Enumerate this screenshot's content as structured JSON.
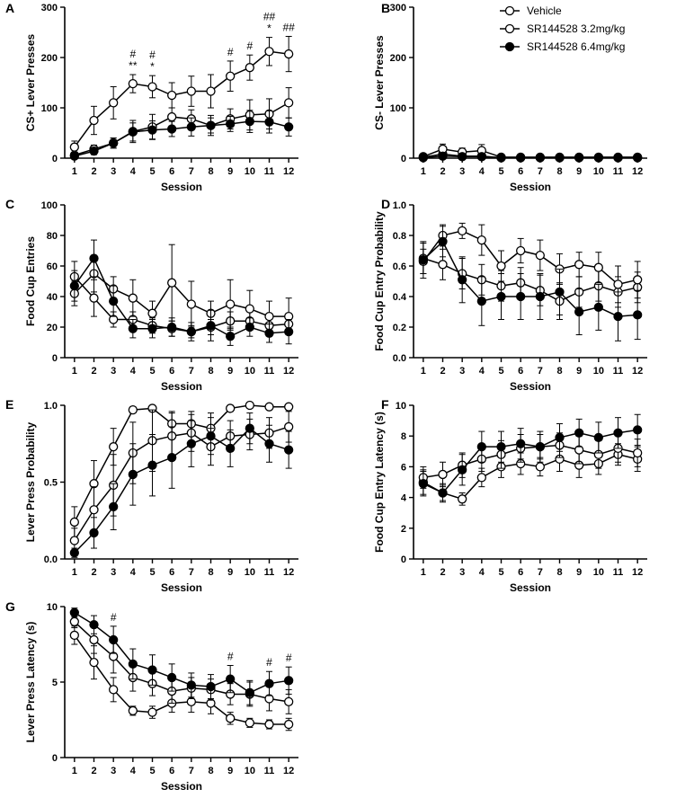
{
  "figure": {
    "legend": [
      {
        "name": "Vehicle",
        "fill": "#ffffff"
      },
      {
        "name": "SR144528 3.2mg/kg",
        "fill": "#ffffff"
      },
      {
        "name": "SR144528 6.4mg/kg",
        "fill": "#000000"
      }
    ]
  },
  "chart_data": [
    {
      "id": "A",
      "label": "A",
      "type": "line",
      "title": "",
      "xlabel": "Session",
      "ylabel": "CS+  Lever Presses",
      "x": [
        1,
        2,
        3,
        4,
        5,
        6,
        7,
        8,
        9,
        10,
        11,
        12
      ],
      "ylim": [
        0,
        300
      ],
      "yticks": [
        0,
        100,
        200,
        300
      ],
      "series": [
        {
          "name": "Vehicle",
          "values": [
            22,
            75,
            110,
            148,
            142,
            125,
            133,
            133,
            163,
            180,
            212,
            207
          ],
          "errors": [
            12,
            28,
            32,
            18,
            22,
            25,
            30,
            33,
            30,
            25,
            28,
            35
          ]
        },
        {
          "name": "SR144528 3.2mg/kg",
          "values": [
            6,
            18,
            30,
            53,
            62,
            82,
            78,
            65,
            78,
            86,
            88,
            110
          ],
          "errors": [
            4,
            8,
            10,
            22,
            25,
            18,
            18,
            20,
            20,
            30,
            30,
            30
          ]
        },
        {
          "name": "SR144528 6.4mg/kg",
          "values": [
            4,
            14,
            30,
            52,
            56,
            58,
            62,
            65,
            68,
            73,
            72,
            62
          ],
          "errors": [
            3,
            7,
            10,
            18,
            18,
            15,
            18,
            15,
            15,
            22,
            22,
            18
          ]
        }
      ],
      "annotations": [
        {
          "x": 4,
          "lines": [
            "#",
            "**"
          ]
        },
        {
          "x": 5,
          "lines": [
            "#",
            "*"
          ]
        },
        {
          "x": 9,
          "lines": [
            "#"
          ]
        },
        {
          "x": 10,
          "lines": [
            "#"
          ]
        },
        {
          "x": 11,
          "lines": [
            "##",
            "*"
          ]
        },
        {
          "x": 12,
          "lines": [
            "##"
          ]
        }
      ]
    },
    {
      "id": "B",
      "label": "B",
      "type": "line",
      "title": "",
      "xlabel": "Session",
      "ylabel": "CS-  Lever Presses",
      "x": [
        1,
        2,
        3,
        4,
        5,
        6,
        7,
        8,
        9,
        10,
        11,
        12
      ],
      "ylim": [
        0,
        300
      ],
      "yticks": [
        0,
        100,
        200,
        300
      ],
      "series": [
        {
          "name": "Vehicle",
          "values": [
            2,
            8,
            4,
            4,
            1,
            1,
            1,
            1,
            1,
            1,
            1,
            1
          ],
          "errors": [
            2,
            5,
            4,
            4,
            1,
            1,
            1,
            1,
            1,
            1,
            1,
            1
          ]
        },
        {
          "name": "SR144528 3.2mg/kg",
          "values": [
            3,
            18,
            12,
            15,
            2,
            2,
            2,
            2,
            2,
            2,
            2,
            2
          ],
          "errors": [
            2,
            10,
            8,
            12,
            2,
            1,
            1,
            1,
            1,
            1,
            1,
            1
          ]
        },
        {
          "name": "SR144528 6.4mg/kg",
          "values": [
            1,
            4,
            3,
            3,
            1,
            1,
            1,
            1,
            1,
            1,
            1,
            1
          ],
          "errors": [
            1,
            3,
            2,
            2,
            1,
            1,
            1,
            1,
            1,
            1,
            1,
            1
          ]
        }
      ],
      "annotations": []
    },
    {
      "id": "C",
      "label": "C",
      "type": "line",
      "title": "",
      "xlabel": "Session",
      "ylabel": "Food Cup Entries",
      "x": [
        1,
        2,
        3,
        4,
        5,
        6,
        7,
        8,
        9,
        10,
        11,
        12
      ],
      "ylim": [
        0,
        100
      ],
      "yticks": [
        0,
        20,
        40,
        60,
        80,
        100
      ],
      "series": [
        {
          "name": "Vehicle",
          "values": [
            53,
            39,
            25,
            25,
            21,
            19,
            17,
            20,
            24,
            24,
            21,
            22
          ],
          "errors": [
            10,
            12,
            5,
            5,
            5,
            5,
            4,
            5,
            6,
            6,
            5,
            6
          ]
        },
        {
          "name": "SR144528 3.2mg/kg",
          "values": [
            42,
            55,
            45,
            39,
            29,
            49,
            35,
            29,
            35,
            32,
            27,
            27
          ],
          "errors": [
            8,
            12,
            8,
            12,
            8,
            25,
            15,
            8,
            16,
            12,
            10,
            12
          ]
        },
        {
          "name": "SR144528 6.4mg/kg",
          "values": [
            47,
            65,
            37,
            19,
            19,
            20,
            17,
            21,
            14,
            20,
            16,
            17
          ],
          "errors": [
            10,
            12,
            10,
            6,
            6,
            6,
            6,
            10,
            6,
            6,
            6,
            8
          ]
        }
      ],
      "annotations": []
    },
    {
      "id": "D",
      "label": "D",
      "type": "line",
      "title": "",
      "xlabel": "Session",
      "ylabel": "Food Cup Entry Probability",
      "x": [
        1,
        2,
        3,
        4,
        5,
        6,
        7,
        8,
        9,
        10,
        11,
        12
      ],
      "ylim": [
        0,
        1.0
      ],
      "yticks": [
        0.0,
        0.2,
        0.4,
        0.6,
        0.8,
        1.0
      ],
      "series": [
        {
          "name": "Vehicle",
          "values": [
            0.65,
            0.61,
            0.55,
            0.51,
            0.47,
            0.49,
            0.44,
            0.37,
            0.43,
            0.47,
            0.43,
            0.46
          ],
          "errors": [
            0.1,
            0.1,
            0.1,
            0.1,
            0.1,
            0.1,
            0.1,
            0.12,
            0.1,
            0.1,
            0.1,
            0.1
          ]
        },
        {
          "name": "SR144528 3.2mg/kg",
          "values": [
            0.63,
            0.8,
            0.83,
            0.77,
            0.6,
            0.7,
            0.67,
            0.58,
            0.61,
            0.59,
            0.48,
            0.51
          ],
          "errors": [
            0.08,
            0.07,
            0.05,
            0.1,
            0.1,
            0.08,
            0.1,
            0.1,
            0.08,
            0.1,
            0.12,
            0.12
          ]
        },
        {
          "name": "SR144528 6.4mg/kg",
          "values": [
            0.64,
            0.76,
            0.51,
            0.37,
            0.4,
            0.4,
            0.4,
            0.43,
            0.3,
            0.33,
            0.27,
            0.28
          ],
          "errors": [
            0.12,
            0.1,
            0.15,
            0.16,
            0.15,
            0.15,
            0.15,
            0.15,
            0.15,
            0.15,
            0.16,
            0.16
          ]
        }
      ],
      "annotations": []
    },
    {
      "id": "E",
      "label": "E",
      "type": "line",
      "title": "",
      "xlabel": "Session",
      "ylabel": "Lever Press Probability",
      "x": [
        1,
        2,
        3,
        4,
        5,
        6,
        7,
        8,
        9,
        10,
        11,
        12
      ],
      "ylim": [
        0,
        1.0
      ],
      "yticks": [
        0.0,
        0.5,
        1.0
      ],
      "series": [
        {
          "name": "Vehicle",
          "values": [
            0.24,
            0.49,
            0.73,
            0.97,
            0.98,
            0.88,
            0.88,
            0.85,
            0.98,
            1.0,
            0.99,
            0.99
          ],
          "errors": [
            0.1,
            0.15,
            0.12,
            0.02,
            0.02,
            0.08,
            0.08,
            0.1,
            0.02,
            0.0,
            0.01,
            0.01
          ]
        },
        {
          "name": "SR144528 3.2mg/kg",
          "values": [
            0.12,
            0.32,
            0.48,
            0.69,
            0.77,
            0.8,
            0.82,
            0.73,
            0.8,
            0.81,
            0.82,
            0.86
          ],
          "errors": [
            0.08,
            0.15,
            0.2,
            0.2,
            0.2,
            0.15,
            0.12,
            0.12,
            0.1,
            0.1,
            0.1,
            0.1
          ]
        },
        {
          "name": "SR144528 6.4mg/kg",
          "values": [
            0.04,
            0.17,
            0.34,
            0.55,
            0.61,
            0.66,
            0.75,
            0.8,
            0.72,
            0.85,
            0.75,
            0.71
          ],
          "errors": [
            0.03,
            0.1,
            0.15,
            0.2,
            0.2,
            0.2,
            0.15,
            0.12,
            0.12,
            0.1,
            0.12,
            0.12
          ]
        }
      ],
      "annotations": []
    },
    {
      "id": "F",
      "label": "F",
      "type": "line",
      "title": "",
      "xlabel": "Session",
      "ylabel": "Food Cup Entry Latency (s)",
      "x": [
        1,
        2,
        3,
        4,
        5,
        6,
        7,
        8,
        9,
        10,
        11,
        12
      ],
      "ylim": [
        0,
        10
      ],
      "yticks": [
        0,
        2,
        4,
        6,
        8,
        10
      ],
      "series": [
        {
          "name": "Vehicle",
          "values": [
            5.0,
            4.3,
            3.9,
            5.3,
            6.0,
            6.2,
            6.0,
            6.5,
            6.1,
            6.2,
            6.8,
            6.5
          ],
          "errors": [
            0.8,
            0.5,
            0.4,
            0.6,
            0.7,
            0.7,
            0.6,
            0.8,
            0.8,
            0.7,
            0.7,
            0.8
          ]
        },
        {
          "name": "SR144528 3.2mg/kg",
          "values": [
            5.3,
            5.5,
            6.1,
            6.5,
            6.8,
            7.2,
            7.3,
            7.4,
            7.1,
            6.8,
            7.2,
            6.9
          ],
          "errors": [
            0.7,
            0.8,
            0.8,
            0.8,
            0.9,
            0.9,
            0.8,
            0.8,
            0.9,
            0.9,
            0.9,
            0.9
          ]
        },
        {
          "name": "SR144528 6.4mg/kg",
          "values": [
            4.9,
            4.3,
            5.8,
            7.3,
            7.3,
            7.5,
            7.3,
            7.9,
            8.2,
            7.9,
            8.2,
            8.4
          ],
          "errors": [
            0.8,
            0.6,
            1.0,
            1.0,
            1.0,
            1.0,
            1.0,
            0.9,
            0.9,
            1.0,
            1.0,
            1.0
          ]
        }
      ],
      "annotations": []
    },
    {
      "id": "G",
      "label": "G",
      "type": "line",
      "title": "",
      "xlabel": "Session",
      "ylabel": "Lever Press Latency (s)",
      "x": [
        1,
        2,
        3,
        4,
        5,
        6,
        7,
        8,
        9,
        10,
        11,
        12
      ],
      "ylim": [
        0,
        10
      ],
      "yticks": [
        0,
        5,
        10
      ],
      "series": [
        {
          "name": "Vehicle",
          "values": [
            8.1,
            6.3,
            4.5,
            3.1,
            3.0,
            3.6,
            3.7,
            3.6,
            2.6,
            2.3,
            2.2,
            2.2
          ],
          "errors": [
            0.6,
            1.1,
            0.8,
            0.3,
            0.4,
            0.6,
            0.7,
            0.7,
            0.4,
            0.3,
            0.3,
            0.4
          ]
        },
        {
          "name": "SR144528 3.2mg/kg",
          "values": [
            9.0,
            7.8,
            6.7,
            5.3,
            4.9,
            4.4,
            4.6,
            4.5,
            4.2,
            4.2,
            3.9,
            3.7
          ],
          "errors": [
            0.4,
            0.9,
            1.1,
            0.9,
            0.8,
            0.8,
            0.7,
            0.7,
            0.7,
            0.8,
            0.8,
            0.8
          ]
        },
        {
          "name": "SR144528 6.4mg/kg",
          "values": [
            9.6,
            8.8,
            7.8,
            6.2,
            5.8,
            5.3,
            4.8,
            4.7,
            5.2,
            4.3,
            4.9,
            5.1
          ],
          "errors": [
            0.3,
            0.6,
            0.9,
            1.0,
            1.0,
            0.9,
            0.8,
            0.8,
            0.9,
            0.8,
            0.8,
            0.9
          ]
        }
      ],
      "annotations": [
        {
          "x": 3,
          "lines": [
            "#"
          ]
        },
        {
          "x": 9,
          "lines": [
            "#"
          ]
        },
        {
          "x": 11,
          "lines": [
            "#"
          ]
        },
        {
          "x": 12,
          "lines": [
            "#"
          ]
        }
      ]
    }
  ]
}
